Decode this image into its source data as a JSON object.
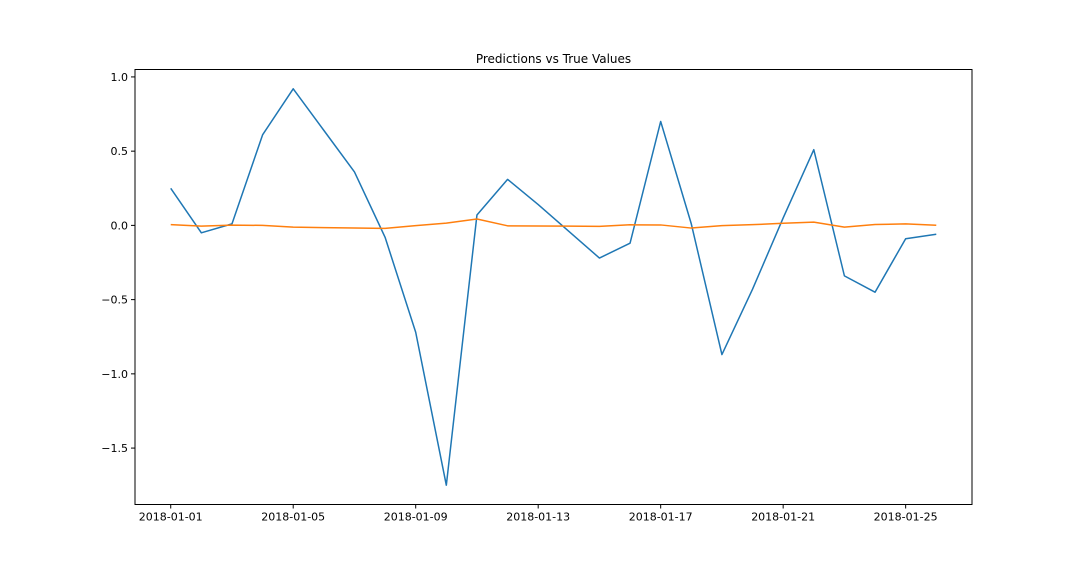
{
  "chart_data": {
    "type": "line",
    "title": "Predictions vs True Values",
    "xlabel": "",
    "ylabel": "",
    "x": [
      "2018-01-01",
      "2018-01-02",
      "2018-01-03",
      "2018-01-04",
      "2018-01-05",
      "2018-01-06",
      "2018-01-07",
      "2018-01-08",
      "2018-01-09",
      "2018-01-10",
      "2018-01-11",
      "2018-01-12",
      "2018-01-13",
      "2018-01-14",
      "2018-01-15",
      "2018-01-16",
      "2018-01-17",
      "2018-01-18",
      "2018-01-19",
      "2018-01-20",
      "2018-01-21",
      "2018-01-22",
      "2018-01-23",
      "2018-01-24",
      "2018-01-25",
      "2018-01-26"
    ],
    "xlim": [
      "2017-12-30T20:00",
      "2018-01-27T04:00"
    ],
    "ylim": [
      -1.88,
      1.05
    ],
    "xticks": [
      "2018-01-01",
      "2018-01-05",
      "2018-01-09",
      "2018-01-13",
      "2018-01-17",
      "2018-01-21",
      "2018-01-25"
    ],
    "yticks": [
      1.0,
      0.5,
      0.0,
      -0.5,
      -1.0,
      -1.5
    ],
    "ytick_labels": [
      "1.0",
      "0.5",
      "0.0",
      "−0.5",
      "−1.0",
      "−1.5"
    ],
    "grid": false,
    "legend": false,
    "series": [
      {
        "color": "#1f77b4",
        "values": [
          0.25,
          -0.05,
          0.01,
          0.61,
          0.92,
          0.64,
          0.36,
          -0.08,
          -0.72,
          -1.75,
          0.07,
          0.31,
          0.14,
          -0.04,
          -0.22,
          -0.12,
          0.7,
          0.01,
          -0.87,
          -0.43,
          0.05,
          0.51,
          -0.34,
          -0.45,
          -0.09,
          -0.06
        ]
      },
      {
        "color": "#ff7f0e",
        "values": [
          0.005,
          -0.005,
          0.002,
          0.0,
          -0.012,
          -0.015,
          -0.018,
          -0.02,
          -0.002,
          0.015,
          0.043,
          -0.003,
          -0.004,
          -0.005,
          -0.007,
          0.004,
          0.003,
          -0.018,
          -0.002,
          0.005,
          0.014,
          0.022,
          -0.012,
          0.006,
          0.01,
          0.001
        ]
      }
    ]
  }
}
